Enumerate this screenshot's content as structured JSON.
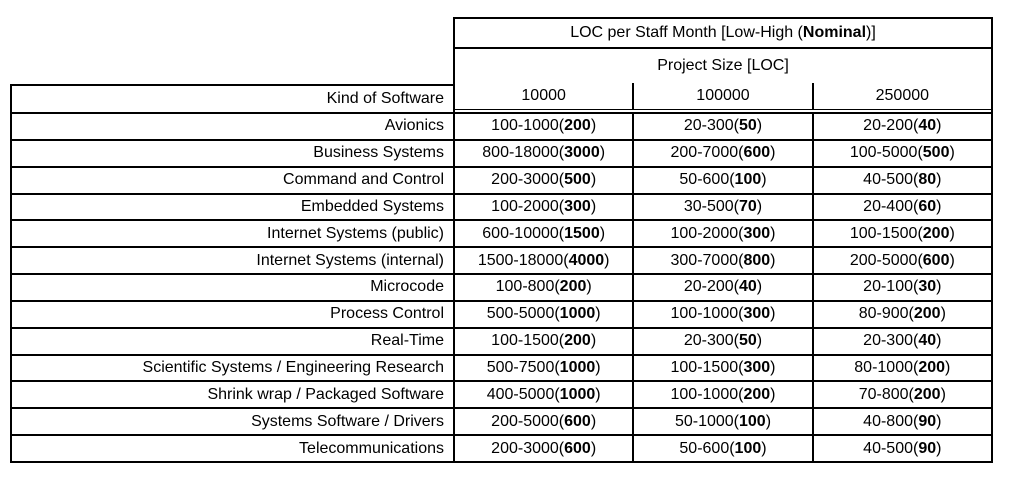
{
  "table": {
    "title": {
      "prefix": "LOC per Staff Month [Low-High (",
      "bold_word": "Nominal",
      "suffix": ")]"
    },
    "subheader": "Project Size [LOC]",
    "kind_header": "Kind of Software",
    "size_columns": [
      "10000",
      "100000",
      "250000"
    ],
    "rows": [
      {
        "kind": "Avionics",
        "cells": [
          {
            "range": "100-1000",
            "nominal": "200"
          },
          {
            "range": "20-300",
            "nominal": "50"
          },
          {
            "range": "20-200",
            "nominal": "40"
          }
        ]
      },
      {
        "kind": "Business Systems",
        "cells": [
          {
            "range": "800-18000",
            "nominal": "3000"
          },
          {
            "range": "200-7000",
            "nominal": "600"
          },
          {
            "range": "100-5000",
            "nominal": "500"
          }
        ]
      },
      {
        "kind": "Command and Control",
        "cells": [
          {
            "range": "200-3000",
            "nominal": "500"
          },
          {
            "range": "50-600",
            "nominal": "100"
          },
          {
            "range": "40-500",
            "nominal": "80"
          }
        ]
      },
      {
        "kind": "Embedded Systems",
        "cells": [
          {
            "range": "100-2000",
            "nominal": "300"
          },
          {
            "range": "30-500",
            "nominal": "70"
          },
          {
            "range": "20-400",
            "nominal": "60"
          }
        ]
      },
      {
        "kind": "Internet Systems (public)",
        "cells": [
          {
            "range": "600-10000",
            "nominal": "1500"
          },
          {
            "range": "100-2000",
            "nominal": "300"
          },
          {
            "range": "100-1500",
            "nominal": "200"
          }
        ]
      },
      {
        "kind": "Internet Systems (internal)",
        "cells": [
          {
            "range": "1500-18000",
            "nominal": "4000"
          },
          {
            "range": "300-7000",
            "nominal": "800"
          },
          {
            "range": "200-5000",
            "nominal": "600"
          }
        ]
      },
      {
        "kind": "Microcode",
        "cells": [
          {
            "range": "100-800",
            "nominal": "200"
          },
          {
            "range": "20-200",
            "nominal": "40"
          },
          {
            "range": "20-100",
            "nominal": "30"
          }
        ]
      },
      {
        "kind": "Process Control",
        "cells": [
          {
            "range": "500-5000",
            "nominal": "1000"
          },
          {
            "range": "100-1000",
            "nominal": "300"
          },
          {
            "range": "80-900",
            "nominal": "200"
          }
        ]
      },
      {
        "kind": "Real-Time",
        "cells": [
          {
            "range": "100-1500",
            "nominal": "200"
          },
          {
            "range": "20-300",
            "nominal": "50"
          },
          {
            "range": "20-300",
            "nominal": "40"
          }
        ]
      },
      {
        "kind": "Scientific Systems / Engineering Research",
        "cells": [
          {
            "range": "500-7500",
            "nominal": "1000"
          },
          {
            "range": "100-1500",
            "nominal": "300"
          },
          {
            "range": "80-1000",
            "nominal": "200"
          }
        ]
      },
      {
        "kind": "Shrink wrap / Packaged Software",
        "cells": [
          {
            "range": "400-5000",
            "nominal": "1000"
          },
          {
            "range": "100-1000",
            "nominal": "200"
          },
          {
            "range": "70-800",
            "nominal": "200"
          }
        ]
      },
      {
        "kind": "Systems Software / Drivers",
        "cells": [
          {
            "range": "200-5000",
            "nominal": "600"
          },
          {
            "range": "50-1000",
            "nominal": "100"
          },
          {
            "range": "40-800",
            "nominal": "90"
          }
        ]
      },
      {
        "kind": "Telecommunications",
        "cells": [
          {
            "range": "200-3000",
            "nominal": "600"
          },
          {
            "range": "50-600",
            "nominal": "100"
          },
          {
            "range": "40-500",
            "nominal": "90"
          }
        ]
      }
    ]
  },
  "colors": {
    "border": "#000000",
    "background": "#ffffff",
    "text": "#000000"
  }
}
